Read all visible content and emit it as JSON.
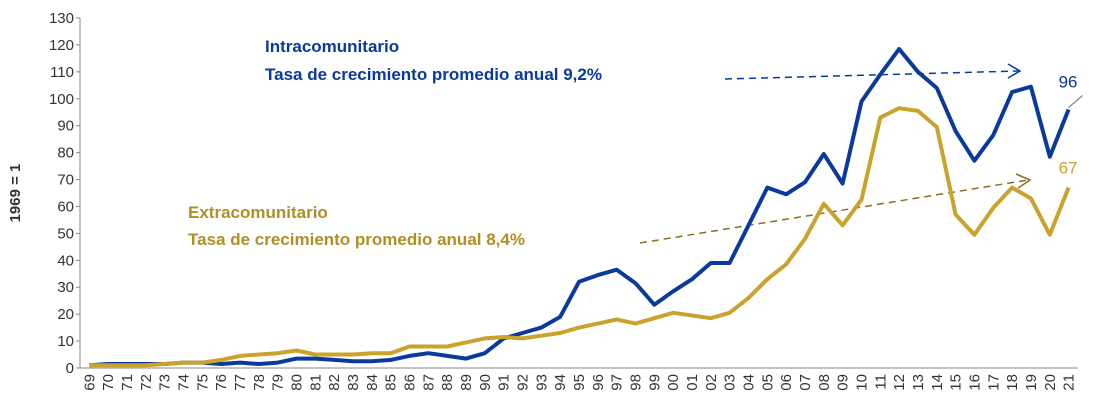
{
  "chart_data": {
    "type": "line",
    "y_label": "1969 = 1",
    "categories": [
      "69",
      "70",
      "71",
      "72",
      "73",
      "74",
      "75",
      "76",
      "77",
      "78",
      "79",
      "80",
      "81",
      "82",
      "83",
      "84",
      "85",
      "86",
      "87",
      "88",
      "89",
      "90",
      "91",
      "92",
      "93",
      "94",
      "95",
      "96",
      "97",
      "98",
      "99",
      "00",
      "01",
      "02",
      "03",
      "04",
      "05",
      "06",
      "07",
      "08",
      "09",
      "10",
      "11",
      "12",
      "13",
      "14",
      "15",
      "16",
      "17",
      "18",
      "19",
      "20",
      "21"
    ],
    "series": [
      {
        "name": "Intracomunitario",
        "color": "#0a3a9e",
        "values": [
          1,
          1.5,
          1.5,
          1.5,
          1.5,
          2,
          2,
          1.5,
          2,
          1.5,
          2,
          3.5,
          3.5,
          3,
          2.5,
          2.5,
          3,
          4.5,
          5.5,
          4.5,
          3.5,
          5.5,
          11,
          13,
          15,
          19,
          32,
          34.5,
          36.5,
          31.5,
          23.5,
          28.5,
          33,
          39,
          39,
          53,
          67,
          64.5,
          69,
          79.5,
          68.5,
          99,
          109,
          118.5,
          110,
          104,
          88,
          77,
          86.5,
          102.5,
          104.5,
          78.5,
          96
        ]
      },
      {
        "name": "Extracomunitario",
        "color": "#c9a32c",
        "values": [
          1,
          1,
          1,
          1,
          1.5,
          2,
          2,
          3,
          4.5,
          5,
          5.5,
          6.5,
          5,
          5,
          5,
          5.5,
          5.5,
          8,
          8,
          8,
          9.5,
          11,
          11.5,
          11,
          12,
          13,
          15,
          16.5,
          18,
          16.5,
          18.5,
          20.5,
          19.5,
          18.5,
          20.5,
          26,
          33,
          38.5,
          48,
          61,
          53,
          62.5,
          93,
          96.5,
          95.5,
          89.5,
          57,
          49.5,
          59.5,
          67,
          63,
          49.5,
          67
        ]
      }
    ],
    "annotations": [
      "Tasa de crecimiento promedio anual  9,2%",
      "Tasa de crecimiento promedio anual 8,4%"
    ],
    "ylim": [
      0,
      130
    ],
    "yticks": [
      0,
      10,
      20,
      30,
      40,
      50,
      60,
      70,
      80,
      90,
      100,
      110,
      120,
      130
    ],
    "grid": false
  }
}
